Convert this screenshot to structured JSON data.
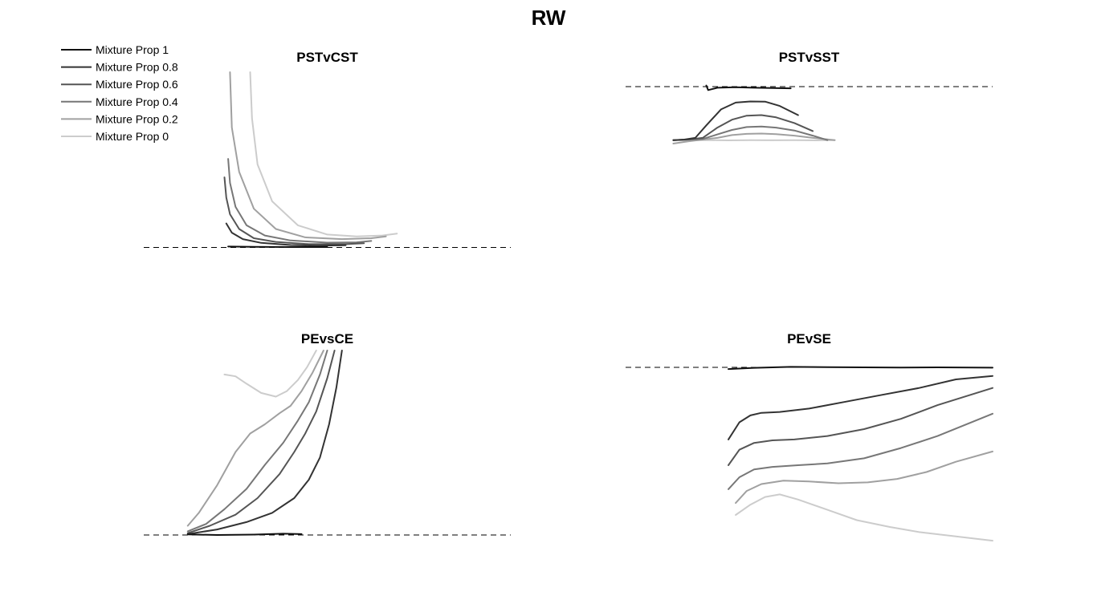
{
  "figure_title": "RW",
  "colors": {
    "series": [
      "#111111",
      "#333333",
      "#555555",
      "#777777",
      "#a0a0a0",
      "#cccccc"
    ],
    "baseline": "#000000",
    "background": "#ffffff"
  },
  "legend": {
    "placement": "top-left",
    "entries": [
      "Mixture Prop 1",
      "Mixture Prop 0.8",
      "Mixture Prop 0.6",
      "Mixture Prop 0.4",
      "Mixture Prop 0.2",
      "Mixture Prop 0"
    ]
  },
  "chart_data": [
    {
      "type": "line",
      "title": "PSTvCST",
      "axes_visible": false,
      "xlim": [
        0,
        100
      ],
      "ylim": [
        0,
        100
      ],
      "baseline": {
        "y": 5,
        "style": "dashed"
      },
      "series": [
        {
          "name": "Mixture Prop 1",
          "x": [
            23,
            30,
            40,
            50
          ],
          "y": [
            5.5,
            5.3,
            5.2,
            5.2
          ]
        },
        {
          "name": "Mixture Prop 0.8",
          "x": [
            22.5,
            24,
            27,
            32,
            40,
            47,
            55
          ],
          "y": [
            18,
            13,
            9.5,
            7.5,
            6.3,
            6,
            6.2
          ]
        },
        {
          "name": "Mixture Prop 0.6",
          "x": [
            22,
            22.5,
            23.5,
            26,
            30,
            36,
            45,
            55,
            60
          ],
          "y": [
            43,
            32,
            23,
            15,
            10,
            8,
            6.8,
            6.8,
            7.3
          ]
        },
        {
          "name": "Mixture Prop 0.4",
          "x": [
            23,
            23.5,
            25,
            28,
            33,
            40,
            50,
            58,
            62
          ],
          "y": [
            53,
            40,
            27,
            17,
            11.5,
            8.8,
            7.6,
            7.8,
            8.5
          ]
        },
        {
          "name": "Mixture Prop 0.2",
          "x": [
            23.5,
            24,
            26,
            30,
            36,
            44,
            54,
            62,
            66
          ],
          "y": [
            100,
            70,
            46,
            26,
            15,
            10.5,
            9.5,
            10,
            11
          ]
        },
        {
          "name": "Mixture Prop 0",
          "x": [
            29,
            29.5,
            31,
            35,
            42,
            50,
            58,
            65,
            69
          ],
          "y": [
            100,
            75,
            50,
            30,
            17,
            12,
            11,
            11.5,
            12.5
          ]
        }
      ]
    },
    {
      "type": "line",
      "title": "PSTvSST",
      "axes_visible": false,
      "xlim": [
        0,
        100
      ],
      "ylim": [
        0,
        100
      ],
      "baseline": {
        "y": 100,
        "style": "dashed"
      },
      "series": [
        {
          "name": "Mixture Prop 1",
          "x": [
            22,
            22.5,
            25,
            30,
            35,
            40,
            45
          ],
          "y": [
            101,
            97,
            99,
            99.5,
            99,
            98.8,
            98.5
          ]
        },
        {
          "name": "Mixture Prop 0.8",
          "x": [
            13,
            16,
            19,
            22,
            26,
            30,
            34,
            38,
            42,
            47
          ],
          "y": [
            53,
            53.5,
            55,
            66,
            80,
            86,
            87,
            86.8,
            83,
            75
          ]
        },
        {
          "name": "Mixture Prop 0.6",
          "x": [
            13,
            17,
            21,
            25,
            29,
            33,
            37,
            41,
            46,
            51
          ],
          "y": [
            53,
            53.5,
            55,
            64,
            71,
            74.5,
            75,
            73,
            68,
            61
          ]
        },
        {
          "name": "Mixture Prop 0.4",
          "x": [
            13,
            17,
            21,
            25,
            29,
            33,
            37,
            41,
            46,
            51,
            55
          ],
          "y": [
            53,
            53.5,
            54,
            58,
            62,
            64.5,
            65,
            64,
            61.5,
            57,
            53
          ]
        },
        {
          "name": "Mixture Prop 0.2",
          "x": [
            13,
            17,
            21,
            25,
            29,
            33,
            37,
            41,
            46,
            51,
            57
          ],
          "y": [
            50,
            52,
            53.5,
            55,
            57.5,
            58.5,
            58.8,
            58.3,
            57,
            55,
            53
          ]
        },
        {
          "name": "Mixture Prop 0",
          "x": [
            13,
            17,
            22,
            28,
            34,
            40,
            46,
            52,
            57
          ],
          "y": [
            53,
            53,
            53,
            52.8,
            53,
            52.9,
            53,
            52.8,
            53
          ]
        }
      ]
    },
    {
      "type": "line",
      "title": "PEvsCE",
      "axes_visible": false,
      "xlim": [
        0,
        100
      ],
      "ylim": [
        0,
        100
      ],
      "baseline": {
        "y": 0,
        "style": "dashed"
      },
      "series": [
        {
          "name": "Mixture Prop 1",
          "x": [
            12,
            20,
            30,
            38,
            43
          ],
          "y": [
            0.3,
            0,
            0.2,
            0.7,
            0.5
          ]
        },
        {
          "name": "Mixture Prop 0.8",
          "x": [
            12,
            20,
            28,
            35,
            41,
            45,
            48,
            50.5,
            52.5,
            54
          ],
          "y": [
            0.5,
            3,
            7,
            12,
            20,
            30,
            42,
            60,
            80,
            100
          ]
        },
        {
          "name": "Mixture Prop 0.6",
          "x": [
            12,
            18,
            25,
            31,
            37,
            41,
            44,
            47,
            50,
            52
          ],
          "y": [
            1,
            5,
            11,
            20,
            33,
            45,
            55,
            67,
            85,
            100
          ]
        },
        {
          "name": "Mixture Prop 0.4",
          "x": [
            12,
            17,
            22,
            28,
            33,
            38,
            42,
            45,
            48,
            50
          ],
          "y": [
            2,
            6,
            14,
            25,
            38,
            50,
            62,
            72,
            87,
            100
          ]
        },
        {
          "name": "Mixture Prop 0.2",
          "x": [
            12,
            15,
            20,
            25,
            29,
            33,
            37,
            40,
            43,
            46,
            49
          ],
          "y": [
            5,
            12,
            27,
            45,
            55,
            60,
            66,
            70,
            78,
            88,
            100
          ]
        },
        {
          "name": "Mixture Prop 0",
          "x": [
            22,
            25,
            28,
            32,
            36,
            39,
            42,
            44.5,
            47
          ],
          "y": [
            87,
            86,
            82,
            77,
            75,
            78,
            84,
            91,
            100
          ]
        }
      ]
    },
    {
      "type": "line",
      "title": "PEvSE",
      "axes_visible": false,
      "xlim": [
        0,
        100
      ],
      "ylim": [
        0,
        100
      ],
      "baseline": {
        "y": 100,
        "style": "dashed"
      },
      "series": [
        {
          "name": "Mixture Prop 1",
          "x": [
            28,
            35,
            45,
            55,
            65,
            75,
            85,
            100
          ],
          "y": [
            99,
            99.7,
            100.3,
            100.1,
            100,
            99.9,
            100,
            99.8
          ]
        },
        {
          "name": "Mixture Prop 0.8",
          "x": [
            28,
            31,
            34,
            37,
            42,
            50,
            60,
            70,
            80,
            90,
            100
          ],
          "y": [
            58,
            68,
            72,
            73.5,
            74,
            76,
            80,
            84,
            88,
            93,
            95
          ]
        },
        {
          "name": "Mixture Prop 0.6",
          "x": [
            28,
            31,
            35,
            40,
            46,
            55,
            65,
            75,
            85,
            100
          ],
          "y": [
            43,
            52,
            56,
            57.5,
            58,
            60,
            64,
            70,
            78,
            88
          ]
        },
        {
          "name": "Mixture Prop 0.4",
          "x": [
            28,
            31,
            35,
            40,
            47,
            55,
            65,
            75,
            85,
            100
          ],
          "y": [
            29,
            36,
            40.5,
            42,
            43,
            44,
            47,
            53,
            60,
            73
          ]
        },
        {
          "name": "Mixture Prop 0.2",
          "x": [
            30,
            33,
            37,
            43,
            50,
            58,
            66,
            74,
            82,
            90,
            100
          ],
          "y": [
            21,
            28,
            32,
            34,
            33.5,
            32.5,
            33,
            35,
            39,
            45,
            51
          ]
        },
        {
          "name": "Mixture Prop 0",
          "x": [
            30,
            34,
            38,
            42,
            47,
            55,
            63,
            72,
            80,
            90,
            100
          ],
          "y": [
            14,
            20,
            24.5,
            26,
            23,
            17,
            11,
            7,
            4,
            1.5,
            -1
          ]
        }
      ]
    }
  ]
}
